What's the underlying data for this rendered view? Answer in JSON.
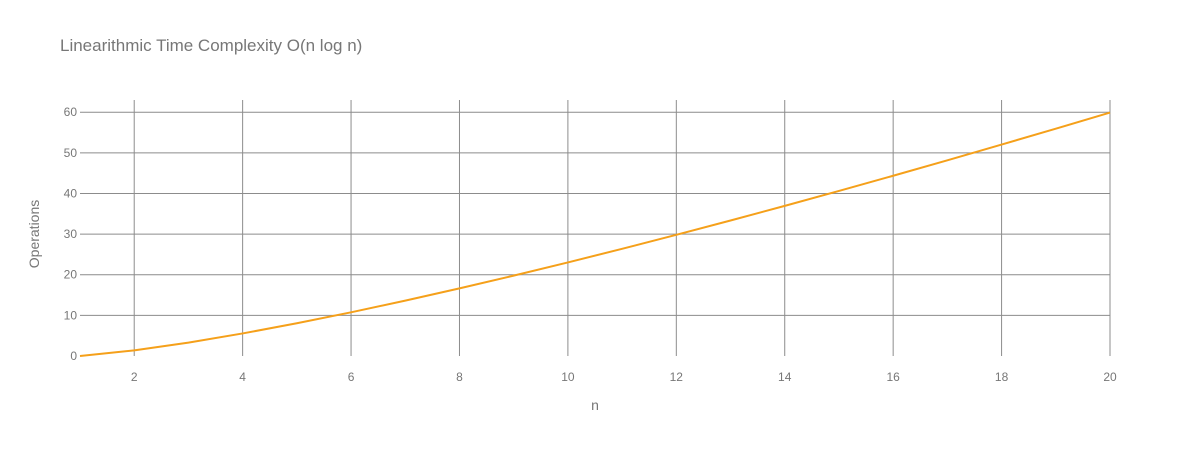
{
  "chart_data": {
    "type": "line",
    "title": "Linearithmic Time Complexity O(n log n)",
    "xlabel": "n",
    "ylabel": "Operations",
    "xlim": [
      1,
      20
    ],
    "ylim": [
      0,
      63
    ],
    "x_ticks": [
      2,
      4,
      6,
      8,
      10,
      12,
      14,
      16,
      18,
      20
    ],
    "y_ticks": [
      0,
      10,
      20,
      30,
      40,
      50,
      60
    ],
    "grid": true,
    "series": [
      {
        "color": "#f5a01a",
        "x": [
          1,
          2,
          3,
          4,
          5,
          6,
          7,
          8,
          9,
          10,
          11,
          12,
          13,
          14,
          15,
          16,
          17,
          18,
          19,
          20
        ],
        "y": [
          0,
          1.39,
          3.3,
          5.55,
          8.05,
          10.75,
          13.62,
          16.64,
          19.78,
          23.03,
          26.38,
          29.82,
          33.34,
          36.95,
          40.62,
          44.36,
          48.16,
          52.03,
          55.94,
          59.91
        ]
      }
    ]
  },
  "colors": {
    "grid": "#8c8c8c",
    "text": "#777777",
    "title": "#777777"
  }
}
